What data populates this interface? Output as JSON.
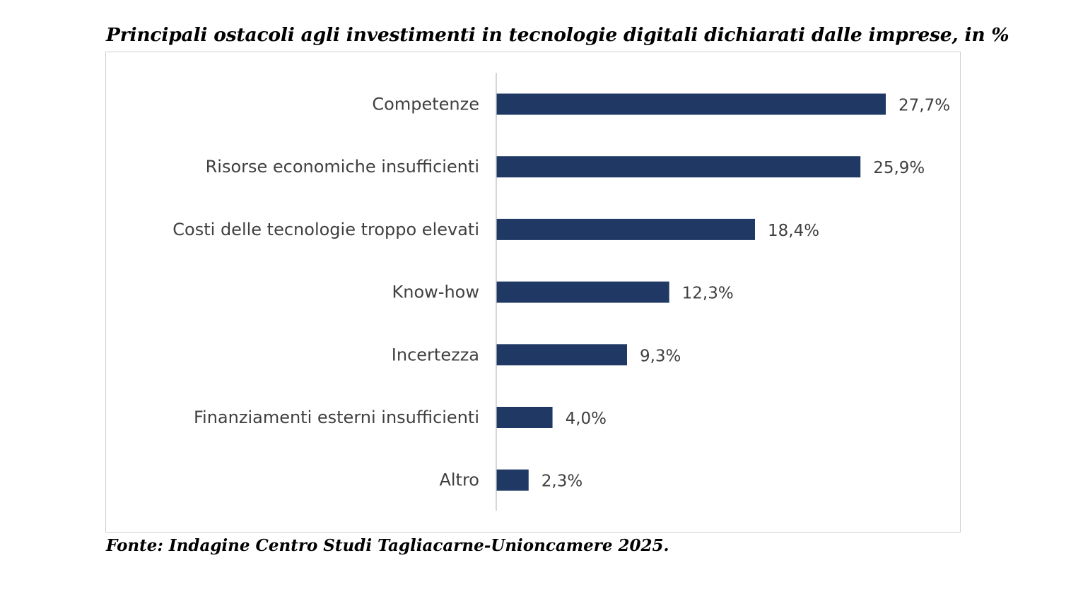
{
  "title": "Principali ostacoli agli investimenti in tecnologie digitali dichiarati dalle imprese, in %",
  "source": "Fonte: Indagine Centro Studi Tagliacarne-Unioncamere 2025.",
  "colors": {
    "bar": "#1f3864",
    "axis": "#bfbfbf",
    "text": "#404040"
  },
  "chart_data": {
    "type": "bar",
    "orientation": "horizontal",
    "categories": [
      "Competenze",
      "Risorse economiche insufficienti",
      "Costi delle tecnologie troppo elevati",
      "Know-how",
      "Incertezza",
      "Finanziamenti esterni insufficienti",
      "Altro"
    ],
    "values": [
      27.7,
      25.9,
      18.4,
      12.3,
      9.3,
      4.0,
      2.3
    ],
    "value_labels": [
      "27,7%",
      "25,9%",
      "18,4%",
      "12,3%",
      "9,3%",
      "4,0%",
      "2,3%"
    ],
    "unit": "%",
    "xlim": [
      0,
      30
    ],
    "grid": false,
    "legend": "none"
  }
}
